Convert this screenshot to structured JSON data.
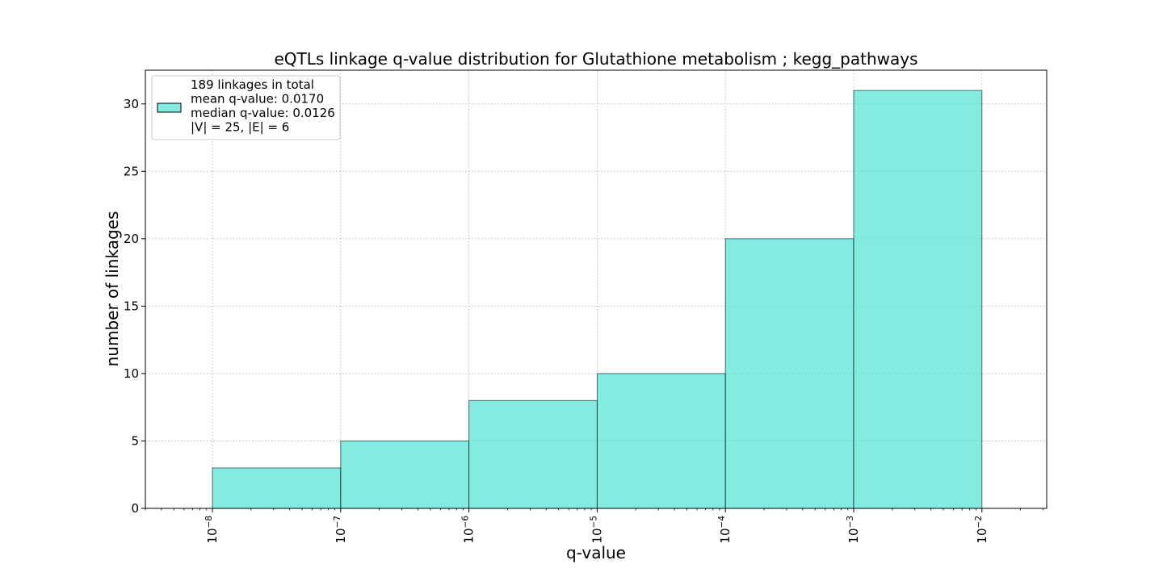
{
  "chart_data": {
    "type": "bar",
    "title": "eQTLs linkage q-value distribution for Glutathione metabolism ; kegg_pathways",
    "xlabel": "q-value",
    "ylabel": "number of linkages",
    "x_scale": "log",
    "bins": [
      {
        "left": 1e-08,
        "right": 1e-07,
        "count": 3
      },
      {
        "left": 1e-07,
        "right": 1e-06,
        "count": 5
      },
      {
        "left": 1e-06,
        "right": 1e-05,
        "count": 8
      },
      {
        "left": 1e-05,
        "right": 0.0001,
        "count": 10
      },
      {
        "left": 0.0001,
        "right": 0.001,
        "count": 20
      },
      {
        "left": 0.001,
        "right": 0.01,
        "count": 31
      }
    ],
    "xlim": [
      3e-09,
      0.032
    ],
    "ylim": [
      0,
      32.5
    ],
    "x_ticks": [
      {
        "value": 1e-08,
        "base": "10",
        "exp": "−8"
      },
      {
        "value": 1e-07,
        "base": "10",
        "exp": "−7"
      },
      {
        "value": 1e-06,
        "base": "10",
        "exp": "−6"
      },
      {
        "value": 1e-05,
        "base": "10",
        "exp": "−5"
      },
      {
        "value": 0.0001,
        "base": "10",
        "exp": "−4"
      },
      {
        "value": 0.001,
        "base": "10",
        "exp": "−3"
      },
      {
        "value": 0.01,
        "base": "10",
        "exp": "−2"
      }
    ],
    "y_ticks": [
      0,
      5,
      10,
      15,
      20,
      25,
      30
    ],
    "grid": true,
    "bar_color": "#40E0D0",
    "bar_opacity": 0.65,
    "edge_color": "#000000",
    "legend": {
      "placement": "top-left",
      "lines": [
        "189 linkages in total",
        "mean q-value: 0.0170",
        "median q-value: 0.0126",
        "|V| = 25, |E| = 6"
      ]
    }
  }
}
